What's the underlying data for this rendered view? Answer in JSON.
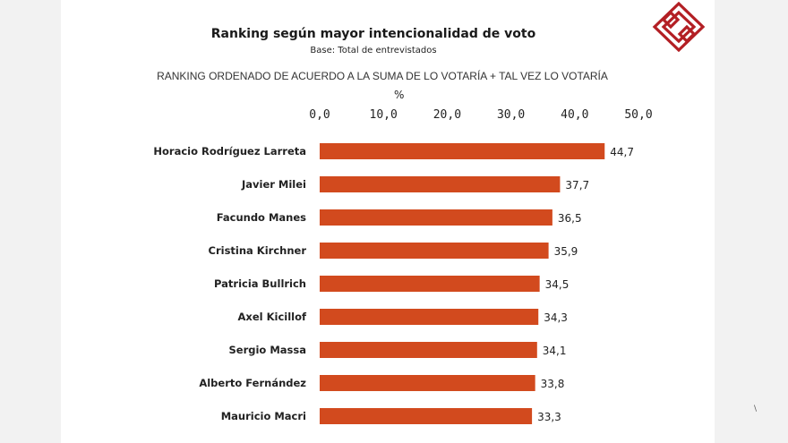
{
  "slide": {
    "title": "Ranking según mayor intencionalidad  de voto",
    "subtitle": "Base: Total de entrevistados",
    "ranking_note": "RANKING ORDENADO DE ACUERDO A LA SUMA DE LO VOTARÍA  + TAL VEZ LO VOTARÍA",
    "unit_label": "%",
    "corner_mark": "\\"
  },
  "chart_data": {
    "type": "bar",
    "orientation": "horizontal",
    "title": "Ranking según mayor intencionalidad  de voto",
    "subtitle": "Base: Total de entrevistados",
    "xlabel": "%",
    "ylabel": "",
    "xlim": [
      0,
      50
    ],
    "ticks": [
      "0,0",
      "10,0",
      "20,0",
      "30,0",
      "40,0",
      "50,0"
    ],
    "tick_values": [
      0,
      10,
      20,
      30,
      40,
      50
    ],
    "grid": false,
    "categories": [
      "Horacio Rodríguez Larreta",
      "Javier Milei",
      "Facundo Manes",
      "Cristina Kirchner",
      "Patricia Bullrich",
      "Axel Kicillof",
      "Sergio Massa",
      "Alberto Fernández",
      "Mauricio Macri"
    ],
    "values": [
      44.7,
      37.7,
      36.5,
      35.9,
      34.5,
      34.3,
      34.1,
      33.8,
      33.3
    ],
    "value_labels": [
      "44,7",
      "37,7",
      "36,5",
      "35,9",
      "34,5",
      "34,3",
      "34,1",
      "33,8",
      "33,3"
    ],
    "bar_color": "#d24a1e"
  },
  "colors": {
    "bar": "#d24a1e",
    "logo": "#b31f24",
    "background": "#ffffff"
  }
}
